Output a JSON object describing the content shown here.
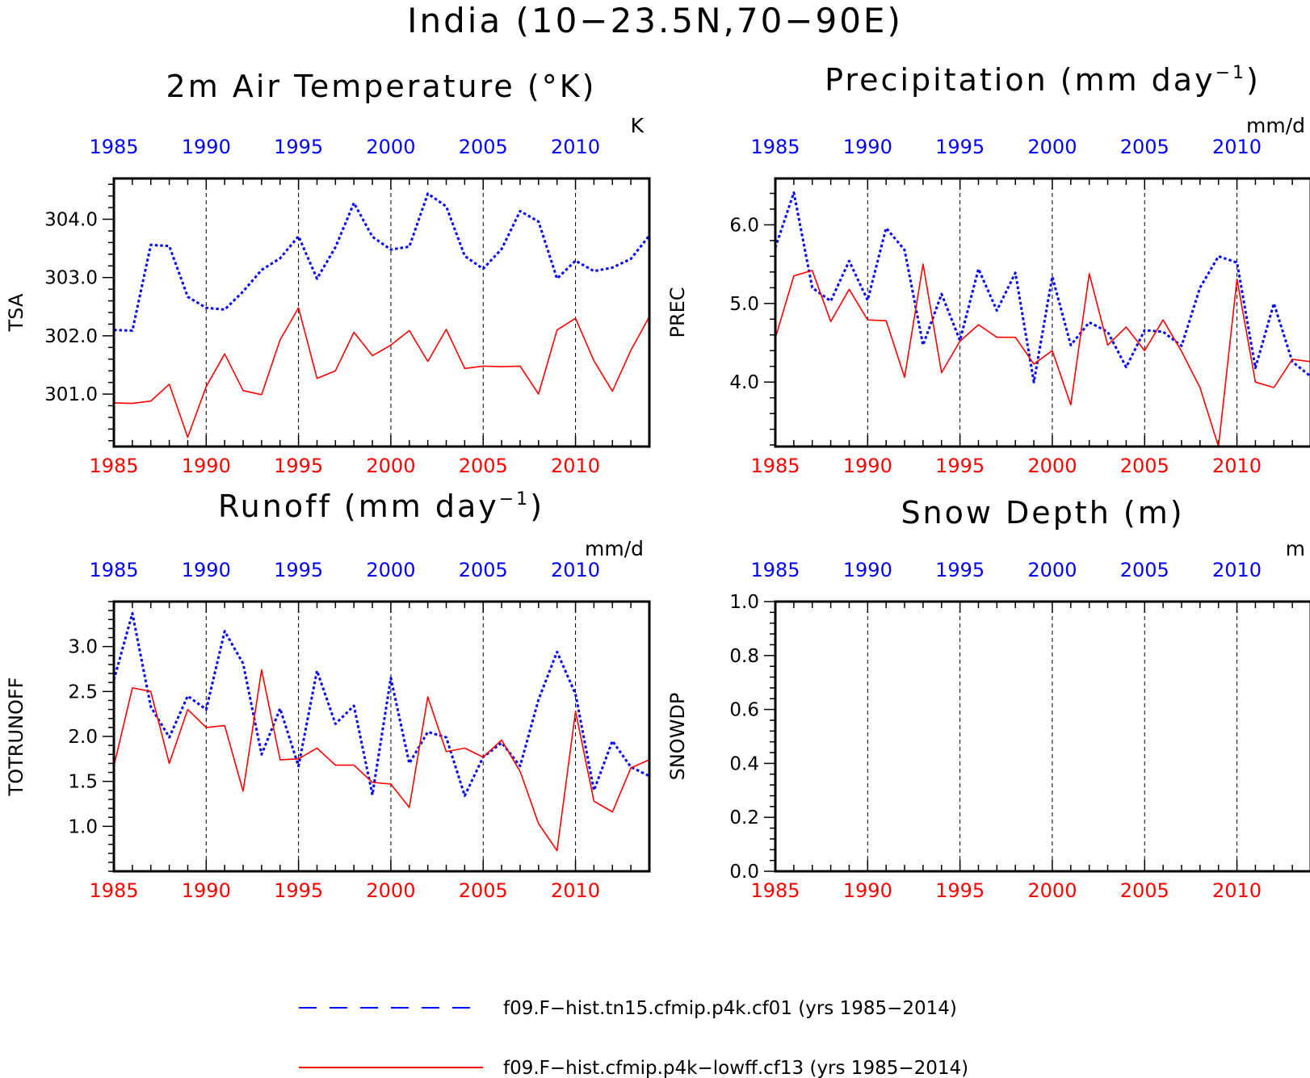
{
  "figure": {
    "title": "India (10−23.5N,70−90E)",
    "colors": {
      "series_a": "#0000ff",
      "series_b": "#ff0000",
      "axis": "#000000"
    },
    "legend": [
      {
        "label": "f09.F−hist.tn15.cfmip.p4k.cf01 (yrs 1985−2014)",
        "color": "#0000ff",
        "style": "dashed"
      },
      {
        "label": "f09.F−hist.cfmip.p4k−lowff.cf13 (yrs 1985−2014)",
        "color": "#ff0000",
        "style": "solid"
      }
    ]
  },
  "chart_data": [
    {
      "type": "line",
      "title": "2m Air Temperature (°K)",
      "ylabel": "TSA",
      "units": "K",
      "xlim": [
        1985,
        2014
      ],
      "ylim": [
        300.1,
        304.7
      ],
      "x_ticks": [
        1985,
        1990,
        1995,
        2000,
        2005,
        2010
      ],
      "y_ticks": [
        301.0,
        302.0,
        303.0,
        304.0
      ],
      "y_tick_labels": [
        "301.0",
        "302.0",
        "303.0",
        "304.0"
      ],
      "series": [
        {
          "color": "#0000ff",
          "style": "dotted",
          "values": [
            302.1,
            302.09,
            303.56,
            303.54,
            302.67,
            302.48,
            302.45,
            302.76,
            303.13,
            303.33,
            303.71,
            302.98,
            303.52,
            304.28,
            303.7,
            303.48,
            303.53,
            304.44,
            304.22,
            303.37,
            303.15,
            303.49,
            304.14,
            303.96,
            302.98,
            303.29,
            303.11,
            303.17,
            303.32,
            303.72
          ]
        },
        {
          "color": "#ff0000",
          "style": "solid",
          "values": [
            300.85,
            300.84,
            300.88,
            301.17,
            300.26,
            301.13,
            301.69,
            301.06,
            300.99,
            301.93,
            302.48,
            301.27,
            301.4,
            302.06,
            301.66,
            301.84,
            302.09,
            301.56,
            302.11,
            301.44,
            301.48,
            301.47,
            301.48,
            301.0,
            302.1,
            302.3,
            301.57,
            301.05,
            301.75,
            302.33
          ]
        }
      ]
    },
    {
      "type": "line",
      "title": "Precipitation (mm day",
      "title_sup": "−1",
      "title_end": ")",
      "ylabel": "PREC",
      "units": "mm/d",
      "xlim": [
        1985,
        2014
      ],
      "ylim": [
        3.18,
        6.59
      ],
      "x_ticks": [
        1985,
        1990,
        1995,
        2000,
        2005,
        2010
      ],
      "y_ticks": [
        4.0,
        5.0,
        6.0
      ],
      "y_tick_labels": [
        "4.0",
        "5.0",
        "6.0"
      ],
      "series": [
        {
          "color": "#0000ff",
          "style": "dotted",
          "values": [
            5.71,
            6.41,
            5.2,
            5.03,
            5.54,
            5.04,
            5.96,
            5.68,
            4.47,
            5.12,
            4.53,
            5.44,
            4.91,
            5.39,
            4.0,
            5.34,
            4.47,
            4.76,
            4.64,
            4.19,
            4.66,
            4.64,
            4.46,
            5.2,
            5.6,
            5.52,
            4.18,
            5.0,
            4.26,
            4.07
          ]
        },
        {
          "color": "#ff0000",
          "style": "solid",
          "values": [
            4.56,
            5.35,
            5.42,
            4.77,
            5.18,
            4.79,
            4.78,
            4.06,
            5.5,
            4.12,
            4.52,
            4.73,
            4.57,
            4.57,
            4.23,
            4.4,
            3.71,
            5.38,
            4.47,
            4.7,
            4.4,
            4.79,
            4.39,
            3.93,
            3.18,
            5.31,
            4.0,
            3.93,
            4.29,
            4.26
          ]
        }
      ]
    },
    {
      "type": "line",
      "title": "Runoff (mm day",
      "title_sup": "−1",
      "title_end": ")",
      "ylabel": "TOTRUNOFF",
      "units": "mm/d",
      "xlim": [
        1985,
        2014
      ],
      "ylim": [
        0.5,
        3.5
      ],
      "x_ticks": [
        1985,
        1990,
        1995,
        2000,
        2005,
        2010
      ],
      "y_ticks": [
        1.0,
        1.5,
        2.0,
        2.5,
        3.0
      ],
      "y_tick_labels": [
        "1.0",
        "1.5",
        "2.0",
        "2.5",
        "3.0"
      ],
      "series": [
        {
          "color": "#0000ff",
          "style": "dotted",
          "values": [
            2.63,
            3.37,
            2.33,
            1.99,
            2.45,
            2.3,
            3.17,
            2.81,
            1.8,
            2.31,
            1.67,
            2.73,
            2.14,
            2.34,
            1.35,
            2.65,
            1.7,
            2.05,
            1.99,
            1.34,
            1.77,
            1.93,
            1.67,
            2.41,
            2.94,
            2.47,
            1.4,
            1.95,
            1.66,
            1.56
          ]
        },
        {
          "color": "#ff0000",
          "style": "solid",
          "values": [
            1.67,
            2.54,
            2.5,
            1.7,
            2.3,
            2.1,
            2.12,
            1.39,
            2.74,
            1.74,
            1.75,
            1.87,
            1.68,
            1.68,
            1.49,
            1.47,
            1.21,
            2.44,
            1.83,
            1.87,
            1.77,
            1.96,
            1.61,
            1.03,
            0.73,
            2.28,
            1.28,
            1.16,
            1.65,
            1.74
          ]
        }
      ]
    },
    {
      "type": "line",
      "title": "Snow Depth (m)",
      "ylabel": "SNOWDP",
      "units": "m",
      "xlim": [
        1985,
        2014
      ],
      "ylim": [
        0.0,
        1.0
      ],
      "x_ticks": [
        1985,
        1990,
        1995,
        2000,
        2005,
        2010
      ],
      "y_ticks": [
        0.0,
        0.2,
        0.4,
        0.6,
        0.8,
        1.0
      ],
      "y_tick_labels": [
        "0.0",
        "0.2",
        "0.4",
        "0.6",
        "0.8",
        "1.0"
      ],
      "series": []
    }
  ]
}
